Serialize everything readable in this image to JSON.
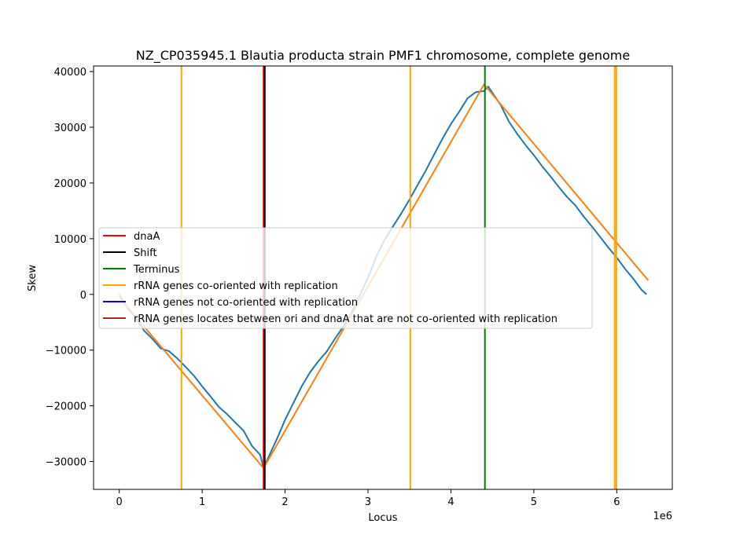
{
  "chart_data": {
    "type": "line",
    "title": "NZ_CP035945.1 Blautia producta strain PMF1 chromosome, complete genome",
    "xlabel": "Locus",
    "ylabel": "Skew",
    "x_offset_text": "1e6",
    "xlim": [
      -310000,
      6670000
    ],
    "ylim": [
      -35000,
      41000
    ],
    "x_ticks": [
      0,
      1000000,
      2000000,
      3000000,
      4000000,
      5000000,
      6000000
    ],
    "x_tick_labels": [
      "0",
      "1",
      "2",
      "3",
      "4",
      "5",
      "6"
    ],
    "y_ticks": [
      -30000,
      -20000,
      -10000,
      0,
      10000,
      20000,
      30000,
      40000
    ],
    "y_tick_labels": [
      "−30000",
      "−20000",
      "−10000",
      "0",
      "10000",
      "20000",
      "30000",
      "40000"
    ],
    "grid": false,
    "legend_position": "center-left",
    "series": [
      {
        "color": "#1f77b4",
        "x": [
          0,
          100000,
          200000,
          300000,
          400000,
          500000,
          600000,
          700000,
          800000,
          900000,
          1000000,
          1100000,
          1200000,
          1300000,
          1400000,
          1500000,
          1600000,
          1700000,
          1740000,
          1800000,
          1900000,
          2000000,
          2100000,
          2200000,
          2300000,
          2400000,
          2500000,
          2600000,
          2700000,
          2800000,
          2900000,
          3000000,
          3100000,
          3200000,
          3300000,
          3400000,
          3500000,
          3600000,
          3700000,
          3800000,
          3900000,
          4000000,
          4100000,
          4200000,
          4300000,
          4400000,
          4450000,
          4500000,
          4600000,
          4700000,
          4800000,
          4900000,
          5000000,
          5100000,
          5200000,
          5300000,
          5400000,
          5500000,
          5600000,
          5700000,
          5800000,
          5900000,
          6000000,
          6100000,
          6200000,
          6300000,
          6360000
        ],
        "y": [
          0,
          -2500,
          -4200,
          -6500,
          -8000,
          -9700,
          -10200,
          -11500,
          -13000,
          -14600,
          -16500,
          -18300,
          -20200,
          -21500,
          -23000,
          -24500,
          -27200,
          -28800,
          -31200,
          -29200,
          -26000,
          -22500,
          -19500,
          -16500,
          -14000,
          -12000,
          -10300,
          -8000,
          -5800,
          -3300,
          -200,
          3000,
          6800,
          9800,
          12200,
          14500,
          17000,
          19700,
          22300,
          25200,
          28000,
          30600,
          32800,
          35200,
          36300,
          36500,
          37300,
          36200,
          34000,
          31000,
          28800,
          26800,
          25000,
          23000,
          21200,
          19300,
          17500,
          16000,
          14000,
          12200,
          10300,
          8400,
          6600,
          4600,
          2800,
          800,
          0
        ]
      },
      {
        "color": "#ff7f0e",
        "x": [
          0,
          1740000,
          4400000,
          6380000
        ],
        "y": [
          -500,
          -31200,
          37700,
          2500
        ]
      }
    ],
    "vlines": [
      {
        "x": 750000,
        "color": "#ffa500"
      },
      {
        "x": 3510000,
        "color": "#ffa500"
      },
      {
        "x": 5975000,
        "color": "#ffa500"
      },
      {
        "x": 5995000,
        "color": "#ffa500"
      },
      {
        "x": 1740000,
        "color": "#ff0000"
      },
      {
        "x": 1755000,
        "color": "#000000"
      },
      {
        "x": 4410000,
        "color": "#008000"
      }
    ],
    "legend": [
      {
        "label": "dnaA",
        "color": "#ff0000"
      },
      {
        "label": "Shift",
        "color": "#000000"
      },
      {
        "label": "Terminus",
        "color": "#008000"
      },
      {
        "label": "rRNA genes co-oriented with replication",
        "color": "#ffa500"
      },
      {
        "label": "rRNA genes not co-oriented with replication",
        "color": "#0000ff"
      },
      {
        "label": "rRNA genes locates between ori and dnaA that are not co-oriented with replication",
        "color": "#a52a2a"
      }
    ]
  }
}
